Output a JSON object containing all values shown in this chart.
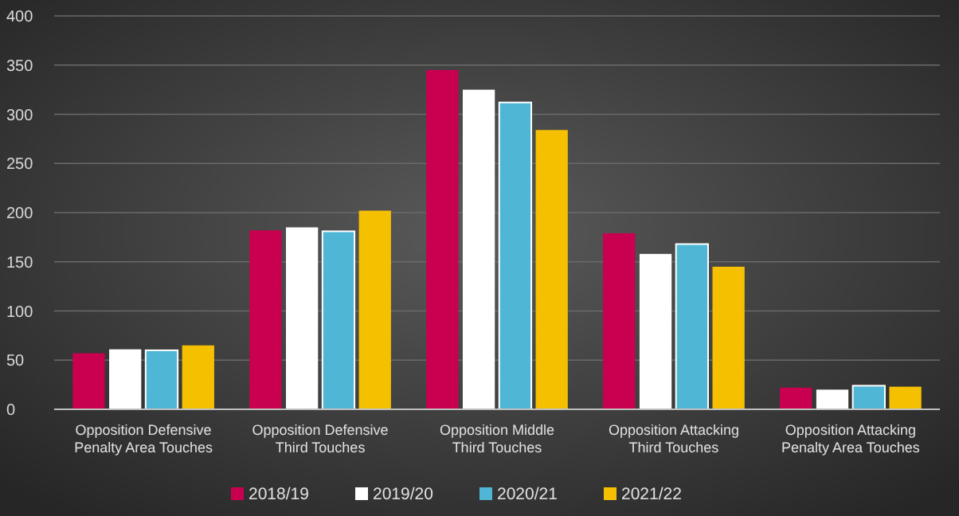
{
  "chart_data": {
    "type": "bar",
    "categories": [
      "Opposition Defensive Penalty Area Touches",
      "Opposition Defensive Third Touches",
      "Opposition Middle Third Touches",
      "Opposition Attacking Third Touches",
      "Opposition Attacking Penalty Area Touches"
    ],
    "series": [
      {
        "name": "2018/19",
        "color": "#c8004f",
        "values": [
          57,
          182,
          345,
          179,
          22
        ]
      },
      {
        "name": "2019/20",
        "color": "#ffffff",
        "values": [
          61,
          185,
          325,
          158,
          20
        ]
      },
      {
        "name": "2020/21",
        "color": "#4fb6d6",
        "values": [
          60,
          181,
          312,
          168,
          24
        ]
      },
      {
        "name": "2021/22",
        "color": "#f5c000",
        "values": [
          65,
          202,
          284,
          145,
          23
        ]
      }
    ],
    "ylim": [
      0,
      400
    ],
    "yticks": [
      0,
      50,
      100,
      150,
      200,
      250,
      300,
      350,
      400
    ],
    "grid": "y",
    "legend": "bottom"
  }
}
